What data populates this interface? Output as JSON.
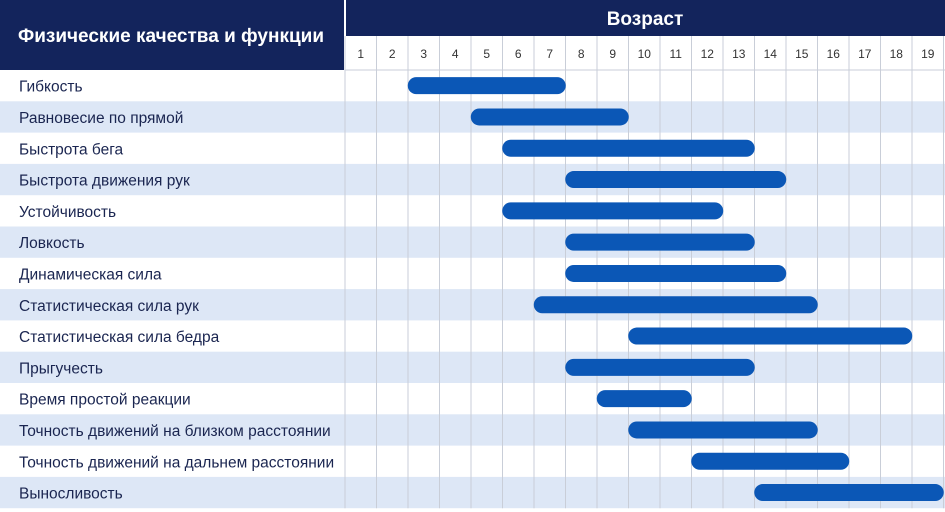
{
  "colors": {
    "header": "#13245c",
    "bar": "#0b57b6",
    "stripe": "#dde7f6",
    "grid": "#c9ced8"
  },
  "chart_data": {
    "type": "gantt",
    "title": "Возраст",
    "row_header": "Физические качества и функции",
    "x_ticks": [
      1,
      2,
      3,
      4,
      5,
      6,
      7,
      8,
      9,
      10,
      11,
      12,
      13,
      14,
      15,
      16,
      17,
      18,
      19
    ],
    "xlim": [
      1,
      19
    ],
    "tasks": [
      {
        "label": "Гибкость",
        "start": 3,
        "end": 7
      },
      {
        "label": "Равновесие по прямой",
        "start": 5,
        "end": 9
      },
      {
        "label": "Быстрота бега",
        "start": 6,
        "end": 13
      },
      {
        "label": "Быстрота движения рук",
        "start": 8,
        "end": 14
      },
      {
        "label": "Устойчивость",
        "start": 6,
        "end": 12
      },
      {
        "label": "Ловкость",
        "start": 8,
        "end": 13
      },
      {
        "label": "Динамическая сила",
        "start": 8,
        "end": 14
      },
      {
        "label": "Статистическая сила рук",
        "start": 7,
        "end": 15
      },
      {
        "label": "Статистическая сила бедра",
        "start": 10,
        "end": 18
      },
      {
        "label": "Прыгучесть",
        "start": 8,
        "end": 13
      },
      {
        "label": "Время простой реакции",
        "start": 9,
        "end": 11
      },
      {
        "label": "Точность движений на близком расстоянии",
        "start": 10,
        "end": 15
      },
      {
        "label": "Точность движений на дальнем расстоянии",
        "start": 12,
        "end": 16
      },
      {
        "label": "Выносливость",
        "start": 14,
        "end": 19
      }
    ]
  }
}
